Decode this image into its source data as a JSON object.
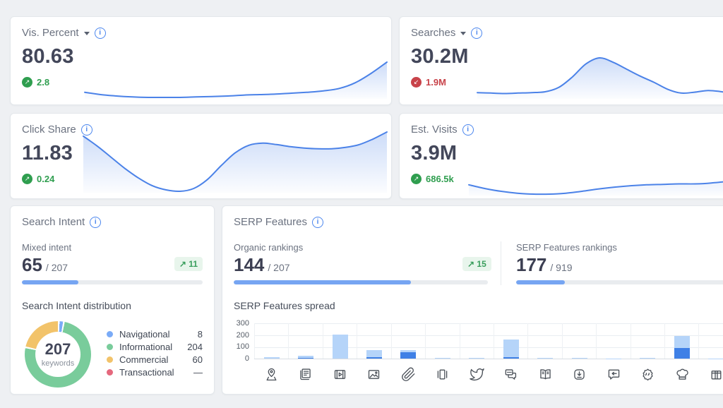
{
  "icons_glyphs": {
    "up_arrow": "↗",
    "down_arrow": "↙"
  },
  "colors": {
    "accent_blue": "#4b82e8",
    "light_bar": "#b5d4f9",
    "dark_bar": "#3f80e6",
    "green": "#2f9e4f",
    "red": "#c8434a",
    "progress_blue": "#76a5f2",
    "donut_blue": "#7aabf7",
    "donut_green": "#79cc9b",
    "donut_yellow": "#f2c36a",
    "donut_red": "#e5687d"
  },
  "cards": {
    "vis_percent": {
      "title": "Vis. Percent",
      "value": "80.63",
      "delta": "2.8",
      "delta_dir": "up"
    },
    "searches": {
      "title": "Searches",
      "value": "30.2M",
      "delta": "1.9M",
      "delta_dir": "down"
    },
    "click_share": {
      "title": "Click Share",
      "value": "11.83",
      "delta": "0.24",
      "delta_dir": "up"
    },
    "est_visits": {
      "title": "Est. Visits",
      "value": "3.9M",
      "delta": "686.5k",
      "delta_dir": "up"
    },
    "search_intent": {
      "title": "Search Intent",
      "metric_label": "Mixed intent",
      "value": "65",
      "total": "/ 207",
      "badge": "↗ 11",
      "progress": {
        "value": 65,
        "max": 207
      },
      "distribution_label": "Search Intent distribution",
      "donut_center_value": "207",
      "donut_center_label": "keywords",
      "legend": [
        {
          "label": "Navigational",
          "value": "8",
          "color": "#7aabf7"
        },
        {
          "label": "Informational",
          "value": "204",
          "color": "#79cc9b"
        },
        {
          "label": "Commercial",
          "value": "60",
          "color": "#f2c36a"
        },
        {
          "label": "Transactional",
          "value": "—",
          "color": "#e5687d"
        }
      ]
    },
    "serp_features": {
      "title": "SERP Features",
      "organic": {
        "label": "Organic rankings",
        "value": "144",
        "total": "/ 207",
        "badge": "↗ 15",
        "progress": {
          "value": 144,
          "max": 207
        }
      },
      "rankings": {
        "label": "SERP Features rankings",
        "value": "177",
        "total": "/ 919",
        "progress": {
          "value": 177,
          "max": 919
        }
      },
      "spread_label": "SERP Features spread"
    }
  },
  "chart_data": {
    "sparklines": {
      "vis_percent": {
        "type": "area",
        "values": [
          4.6,
          4.35,
          4.2,
          4.1,
          4.05,
          4.05,
          4.05,
          4.1,
          4.15,
          4.2,
          4.3,
          4.35,
          4.4,
          4.5,
          4.6,
          4.75,
          5.0,
          5.6,
          6.6,
          7.8
        ]
      },
      "searches": {
        "type": "area",
        "values": [
          4.0,
          3.95,
          3.9,
          3.95,
          4.0,
          4.1,
          4.6,
          5.8,
          7.3,
          8.0,
          7.5,
          6.7,
          5.9,
          5.2,
          4.4,
          3.95,
          4.05,
          4.25,
          4.1,
          3.8,
          3.6,
          3.5,
          3.45
        ]
      },
      "click_share": {
        "type": "area",
        "values": [
          7.6,
          6.9,
          6.1,
          5.3,
          4.6,
          4.05,
          3.75,
          3.65,
          3.85,
          4.5,
          5.5,
          6.4,
          6.95,
          7.1,
          7.0,
          6.85,
          6.75,
          6.7,
          6.7,
          6.8,
          7.0,
          7.4,
          7.9
        ]
      },
      "est_visits": {
        "type": "area",
        "values": [
          4.2,
          3.8,
          3.5,
          3.3,
          3.2,
          3.2,
          3.3,
          3.5,
          3.75,
          3.95,
          4.1,
          4.2,
          4.25,
          4.3,
          4.3,
          4.4,
          4.6,
          5.1,
          6.1,
          7.3
        ]
      }
    },
    "donut": {
      "type": "pie",
      "center": {
        "value": 207,
        "label": "keywords"
      },
      "segments": [
        {
          "name": "Navigational",
          "pct": 2.5,
          "color": "#7aabf7"
        },
        {
          "name": "Informational",
          "pct": 75.5,
          "color": "#79cc9b"
        },
        {
          "name": "Commercial",
          "pct": 22.0,
          "color": "#f2c36a"
        },
        {
          "name": "Transactional",
          "pct": 0,
          "color": "#e5687d"
        }
      ]
    },
    "serp_spread": {
      "type": "bar",
      "stacked": true,
      "ylim": [
        0,
        300
      ],
      "yticks": [
        0,
        100,
        200,
        300
      ],
      "title": "SERP Features spread",
      "bars": [
        {
          "icon": "map-pin-icon",
          "total": 15,
          "dark": 0
        },
        {
          "icon": "newspaper-icon",
          "total": 25,
          "dark": 6
        },
        {
          "icon": "video-icon",
          "total": 205,
          "dark": 0
        },
        {
          "icon": "image-icon",
          "total": 75,
          "dark": 14
        },
        {
          "icon": "paperclip-icon",
          "total": 70,
          "dark": 55
        },
        {
          "icon": "carousel-icon",
          "total": 4,
          "dark": 0
        },
        {
          "icon": "twitter-icon",
          "total": 5,
          "dark": 0
        },
        {
          "icon": "chat-bubbles-icon",
          "total": 165,
          "dark": 15
        },
        {
          "icon": "open-book-icon",
          "total": 5,
          "dark": 0
        },
        {
          "icon": "download-icon",
          "total": 8,
          "dark": 0
        },
        {
          "icon": "reply-bubble-icon",
          "total": 3,
          "dark": 0
        },
        {
          "icon": "quotes-badge-icon",
          "total": 8,
          "dark": 0
        },
        {
          "icon": "chef-hat-icon",
          "total": 195,
          "dark": 90
        },
        {
          "icon": "gift-box-icon",
          "total": 2,
          "dark": 0
        }
      ]
    }
  }
}
